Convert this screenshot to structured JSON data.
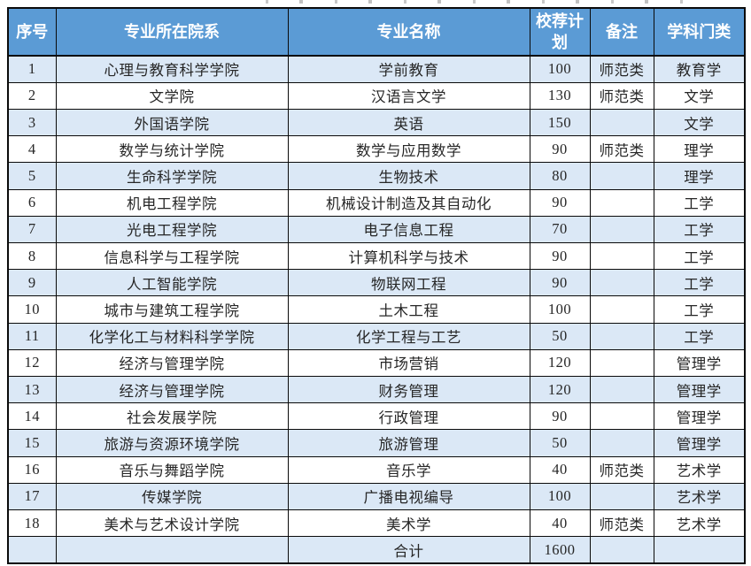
{
  "page": {
    "background": "#ffffff",
    "description_visible_elements": "admission plan table, cropped title line above"
  },
  "table": {
    "columns": [
      {
        "label": "序号"
      },
      {
        "label": "专业所在院系"
      },
      {
        "label": "专业名称"
      },
      {
        "label": "校荐计划"
      },
      {
        "label": "备注"
      },
      {
        "label": "学科门类"
      }
    ],
    "rows": [
      [
        "1",
        "心理与教育科学学院",
        "学前教育",
        "100",
        "师范类",
        "教育学"
      ],
      [
        "2",
        "文学院",
        "汉语言文学",
        "130",
        "师范类",
        "文学"
      ],
      [
        "3",
        "外国语学院",
        "英语",
        "150",
        "",
        "文学"
      ],
      [
        "4",
        "数学与统计学院",
        "数学与应用数学",
        "90",
        "师范类",
        "理学"
      ],
      [
        "5",
        "生命科学学院",
        "生物技术",
        "80",
        "",
        "理学"
      ],
      [
        "6",
        "机电工程学院",
        "机械设计制造及其自动化",
        "90",
        "",
        "工学"
      ],
      [
        "7",
        "光电工程学院",
        "电子信息工程",
        "70",
        "",
        "工学"
      ],
      [
        "8",
        "信息科学与工程学院",
        "计算机科学与技术",
        "90",
        "",
        "工学"
      ],
      [
        "9",
        "人工智能学院",
        "物联网工程",
        "90",
        "",
        "工学"
      ],
      [
        "10",
        "城市与建筑工程学院",
        "土木工程",
        "100",
        "",
        "工学"
      ],
      [
        "11",
        "化学化工与材料科学学院",
        "化学工程与工艺",
        "50",
        "",
        "工学"
      ],
      [
        "12",
        "经济与管理学院",
        "市场营销",
        "120",
        "",
        "管理学"
      ],
      [
        "13",
        "经济与管理学院",
        "财务管理",
        "120",
        "",
        "管理学"
      ],
      [
        "14",
        "社会发展学院",
        "行政管理",
        "90",
        "",
        "管理学"
      ],
      [
        "15",
        "旅游与资源环境学院",
        "旅游管理",
        "50",
        "",
        "管理学"
      ],
      [
        "16",
        "音乐与舞蹈学院",
        "音乐学",
        "40",
        "师范类",
        "艺术学"
      ],
      [
        "17",
        "传媒学院",
        "广播电视编导",
        "100",
        "",
        "艺术学"
      ],
      [
        "18",
        "美术与艺术设计学院",
        "美术学",
        "40",
        "师范类",
        "艺术学"
      ]
    ],
    "total_row": [
      "",
      "",
      "合计",
      "1600",
      "",
      ""
    ],
    "total_label": "合计",
    "total_value": "1600",
    "colors": {
      "header_bg": "#5b9bd5",
      "header_text": "#ffffff",
      "alt_row_bg": "#dbe8f6",
      "row_bg": "#ffffff",
      "border": "#0a0a0a",
      "body_text": "#262626"
    }
  }
}
